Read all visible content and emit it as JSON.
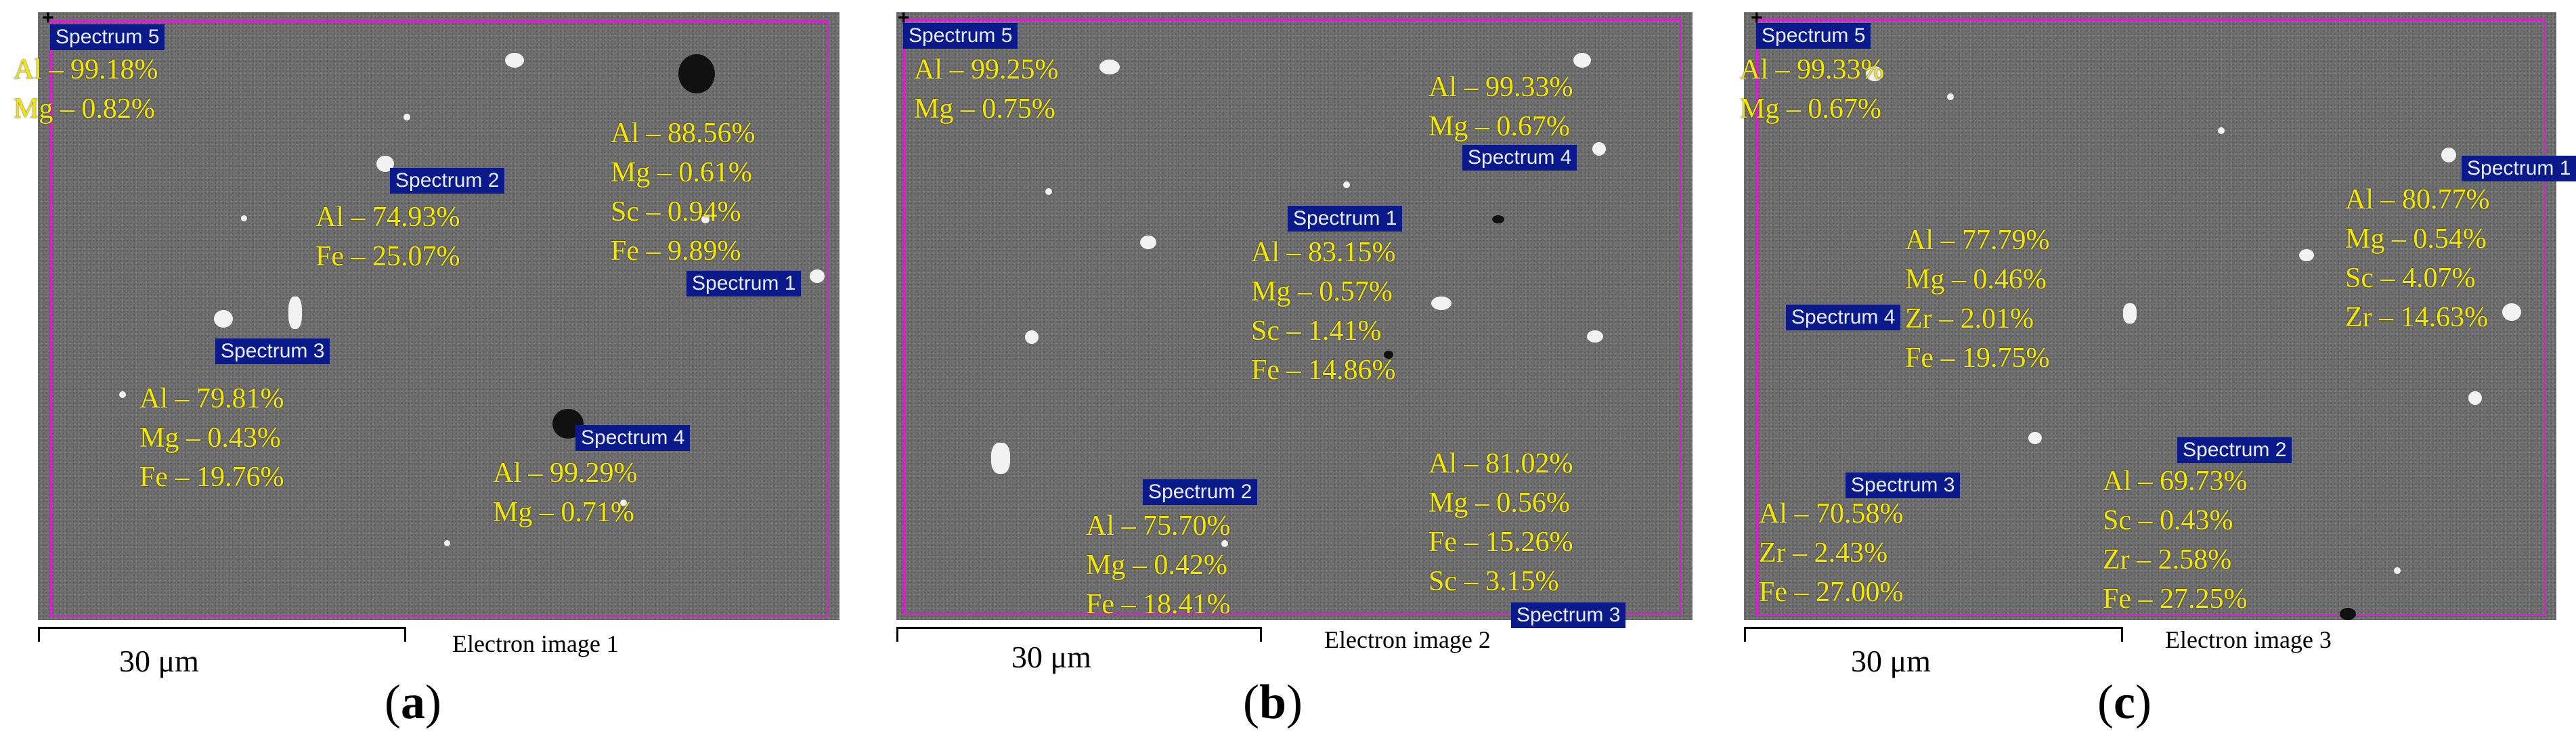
{
  "panels": [
    {
      "label_open": "(",
      "label_letter": "a",
      "label_close": ")",
      "scale": "30 μm",
      "caption": "Electron image 1",
      "spectra": {
        "s1": "Spectrum 1",
        "s2": "Spectrum 2",
        "s3": "Spectrum 3",
        "s4": "Spectrum 4",
        "s5": "Spectrum 5"
      },
      "annotations": {
        "a5": [
          "Al – 99.18%",
          "Mg – 0.82%"
        ],
        "a1": [
          "Al – 88.56%",
          "Mg – 0.61%",
          "Sc – 0.94%",
          "Fe – 9.89%"
        ],
        "a2": [
          "Al – 74.93%",
          "Fe – 25.07%"
        ],
        "a3": [
          "Al – 79.81%",
          "Mg – 0.43%",
          "Fe – 19.76%"
        ],
        "a4": [
          "Al – 99.29%",
          "Mg – 0.71%"
        ]
      }
    },
    {
      "label_open": "(",
      "label_letter": "b",
      "label_close": ")",
      "scale": "30 μm",
      "caption": "Electron image 2",
      "spectra": {
        "s1": "Spectrum 1",
        "s2": "Spectrum 2",
        "s3": "Spectrum 3",
        "s4": "Spectrum 4",
        "s5": "Spectrum 5"
      },
      "annotations": {
        "a5": [
          "Al – 99.25%",
          "Mg – 0.75%"
        ],
        "a4": [
          "Al – 99.33%",
          "Mg – 0.67%"
        ],
        "a1": [
          "Al – 83.15%",
          "Mg – 0.57%",
          "Sc – 1.41%",
          "Fe – 14.86%"
        ],
        "a2": [
          "Al – 75.70%",
          "Mg – 0.42%",
          "Fe – 18.41%"
        ],
        "a3": [
          "Al – 81.02%",
          "Mg – 0.56%",
          "Fe – 15.26%",
          "Sc – 3.15%"
        ]
      }
    },
    {
      "label_open": "(",
      "label_letter": "c",
      "label_close": ")",
      "scale": "30 μm",
      "caption": "Electron image 3",
      "spectra": {
        "s1": "Spectrum 1",
        "s2": "Spectrum 2",
        "s3": "Spectrum 3",
        "s4": "Spectrum 4",
        "s5": "Spectrum 5"
      },
      "annotations": {
        "a5": [
          "Al – 99.33%",
          "Mg – 0.67%"
        ],
        "a1": [
          "Al – 80.77%",
          "Mg – 0.54%",
          "Sc – 4.07%",
          "Zr – 14.63%"
        ],
        "a4": [
          "Al – 77.79%",
          "Mg – 0.46%",
          "Zr – 2.01%",
          "Fe – 19.75%"
        ],
        "a3": [
          "Al – 70.58%",
          "Zr – 2.43%",
          "Fe – 27.00%"
        ],
        "a2": [
          "Al – 69.73%",
          "Sc – 0.43%",
          "Zr – 2.58%",
          "Fe – 27.25%"
        ]
      }
    }
  ]
}
